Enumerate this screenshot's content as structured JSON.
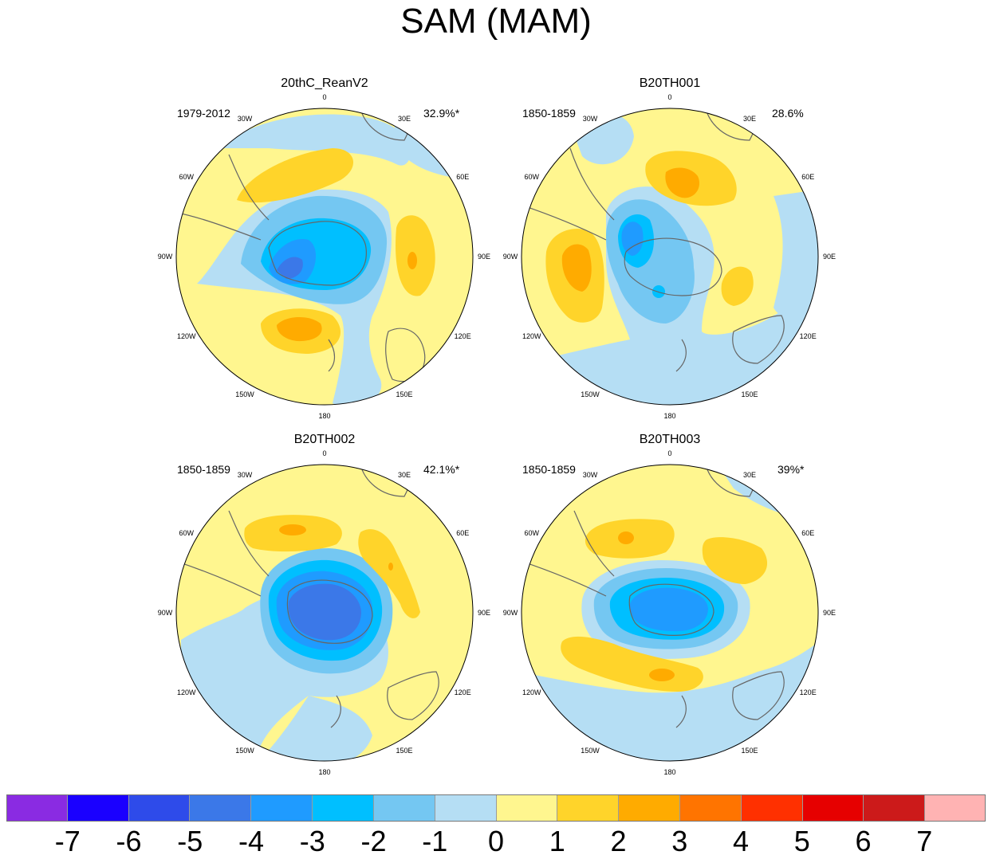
{
  "title": "SAM (MAM)",
  "panels": [
    {
      "title": "20thC_ReanV2",
      "left": "1979-2012",
      "right": "32.9%*"
    },
    {
      "title": "B20TH001",
      "left": "1850-1859",
      "right": "28.6%"
    },
    {
      "title": "B20TH002",
      "left": "1850-1859",
      "right": "42.1%*"
    },
    {
      "title": "B20TH003",
      "left": "1850-1859",
      "right": "39%*"
    }
  ],
  "lon_labels": [
    "0",
    "30E",
    "60E",
    "90E",
    "120E",
    "150E",
    "180",
    "150W",
    "120W",
    "90W",
    "60W",
    "30W"
  ],
  "colorbar": {
    "labels": [
      "-7",
      "-6",
      "-5",
      "-4",
      "-3",
      "-2",
      "-1",
      "0",
      "1",
      "2",
      "3",
      "4",
      "5",
      "6",
      "7"
    ],
    "colors": [
      "#8a2be2",
      "#1a00ff",
      "#2e4bea",
      "#3b78e8",
      "#1f9bff",
      "#00bfff",
      "#74c7f2",
      "#b5def4",
      "#fff68f",
      "#ffd42a",
      "#ffab00",
      "#ff7400",
      "#ff3000",
      "#e60000",
      "#cc1a1a",
      "#ffb3b3"
    ]
  }
}
